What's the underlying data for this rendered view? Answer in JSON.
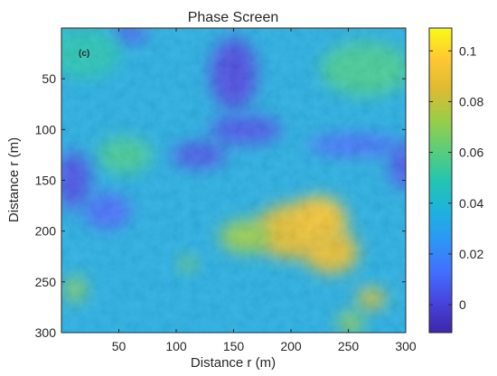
{
  "chart_data": {
    "type": "heatmap",
    "title": "Phase Screen",
    "panel_label": "(c)",
    "xlabel": "Distance r (m)",
    "ylabel": "Distance r (m)",
    "xlim": [
      0,
      300
    ],
    "ylim": [
      300,
      0
    ],
    "y_direction": "reversed",
    "x_ticks": [
      "50",
      "100",
      "150",
      "200",
      "250",
      "300"
    ],
    "y_ticks": [
      "50",
      "100",
      "150",
      "200",
      "250",
      "300"
    ],
    "colormap": "parula",
    "colorbar": {
      "range": [
        -0.011,
        0.109
      ],
      "ticks": [
        "0",
        "0.02",
        "0.04",
        "0.06",
        "0.08",
        "0.1"
      ]
    },
    "background_value": 0.035,
    "features": [
      {
        "x": 200,
        "y": 200,
        "value": 0.085
      },
      {
        "x": 225,
        "y": 190,
        "value": 0.093
      },
      {
        "x": 235,
        "y": 220,
        "value": 0.088
      },
      {
        "x": 160,
        "y": 205,
        "value": 0.072
      },
      {
        "x": 270,
        "y": 266,
        "value": 0.082
      },
      {
        "x": 252,
        "y": 290,
        "value": 0.07
      },
      {
        "x": 110,
        "y": 232,
        "value": 0.065
      },
      {
        "x": 12,
        "y": 257,
        "value": 0.068
      },
      {
        "x": 55,
        "y": 125,
        "value": 0.055
      },
      {
        "x": 150,
        "y": 45,
        "value": 0.002
      },
      {
        "x": 160,
        "y": 100,
        "value": 0.005
      },
      {
        "x": 120,
        "y": 125,
        "value": 0.004
      },
      {
        "x": 255,
        "y": 115,
        "value": 0.012
      },
      {
        "x": 298,
        "y": 135,
        "value": 0.006
      },
      {
        "x": 10,
        "y": 150,
        "value": 0.004
      },
      {
        "x": 40,
        "y": 180,
        "value": 0.012
      },
      {
        "x": 60,
        "y": 5,
        "value": 0.008
      },
      {
        "x": 265,
        "y": 40,
        "value": 0.055
      },
      {
        "x": 20,
        "y": 25,
        "value": 0.048
      }
    ]
  }
}
